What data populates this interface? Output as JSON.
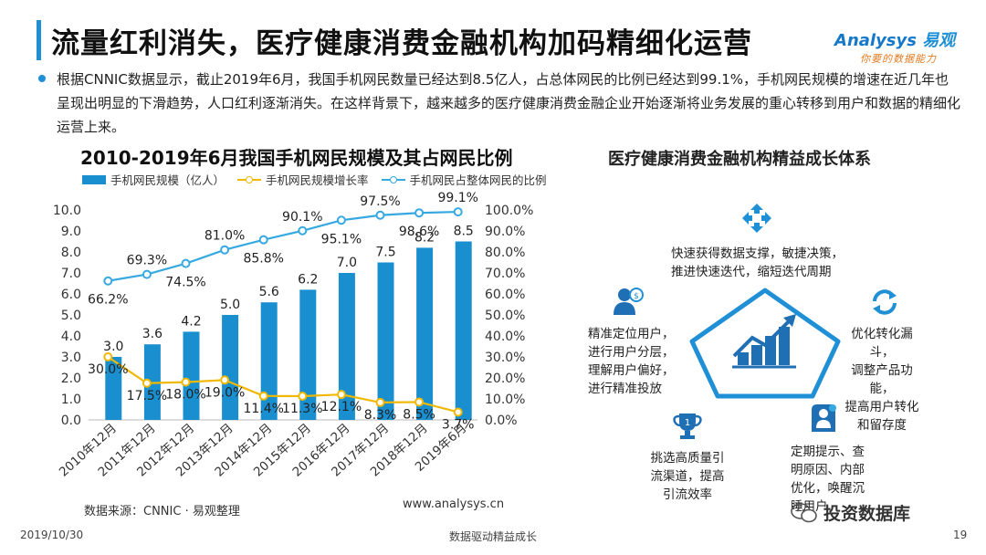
{
  "header": {
    "title": "流量红利消失，医疗健康消费金融机构加码精细化运营",
    "logo_name": "nalysys",
    "logo_initial": "A",
    "logo_cn": "易观",
    "logo_tagline": "你要的数据能力"
  },
  "intro": {
    "text": "根据CNNIC数据显示，截止2019年6月，我国手机网民数量已经达到8.5亿人，占总体网民的比例已经达到99.1%，手机网民规模的增速在近几年也呈现出明显的下滑趋势，人口红利逐渐消失。在这样背景下，越来越多的医疗健康消费金融企业开始逐渐将业务发展的重心转移到用户和数据的精细化运营上来。"
  },
  "chart_data": {
    "type": "bar",
    "title": "2010-2019年6月我国手机网民规模及其占网民比例",
    "categories": [
      "2010年12月",
      "2011年12月",
      "2012年12月",
      "2013年12月",
      "2014年12月",
      "2015年12月",
      "2016年12月",
      "2017年12月",
      "2018年12月",
      "2019年6月"
    ],
    "series": [
      {
        "name": "手机网民规模（亿人）",
        "type": "bar",
        "axis": "left",
        "color": "#1a8fd0",
        "values": [
          3.0,
          3.6,
          4.2,
          5.0,
          5.6,
          6.2,
          7.0,
          7.5,
          8.2,
          8.5
        ],
        "labels": [
          "3.0",
          "3.6",
          "4.2",
          "5.0",
          "5.6",
          "6.2",
          "7.0",
          "7.5",
          "8.2",
          "8.5"
        ]
      },
      {
        "name": "手机网民规模增长率",
        "type": "line",
        "axis": "right",
        "color": "#f0b800",
        "values": [
          30.0,
          17.5,
          18.0,
          19.0,
          11.4,
          11.3,
          12.1,
          8.3,
          8.5,
          3.7
        ],
        "labels": [
          "30.0%",
          "17.5%",
          "18.0%",
          "19.0%",
          "11.4%",
          "11.3%",
          "12.1%",
          "8.3%",
          "8.5%",
          "3.7%"
        ]
      },
      {
        "name": "手机网民占整体网民的比例",
        "type": "line",
        "axis": "right",
        "color": "#36a9e1",
        "values": [
          66.2,
          69.3,
          74.5,
          81.0,
          85.8,
          90.1,
          95.1,
          97.5,
          98.6,
          99.1
        ],
        "labels": [
          "66.2%",
          "69.3%",
          "74.5%",
          "81.0%",
          "85.8%",
          "90.1%",
          "95.1%",
          "97.5%",
          "98.6%",
          "99.1%"
        ]
      }
    ],
    "y_left": {
      "min": 0,
      "max": 10,
      "ticks": [
        "0.0",
        "1.0",
        "2.0",
        "3.0",
        "4.0",
        "5.0",
        "6.0",
        "7.0",
        "8.0",
        "9.0",
        "10.0"
      ]
    },
    "y_right": {
      "min": 0,
      "max": 100,
      "ticks": [
        "0.0%",
        "10.0%",
        "20.0%",
        "30.0%",
        "40.0%",
        "50.0%",
        "60.0%",
        "70.0%",
        "80.0%",
        "90.0%",
        "100.0%"
      ]
    },
    "grid": false,
    "legend": "top"
  },
  "source": {
    "label": "数据来源：CNNIC · 易观整理",
    "website": "www.analysys.cn"
  },
  "growth_system": {
    "title": "医疗健康消费金融机构精益成长体系",
    "items": [
      {
        "icon": "expand-arrows-icon",
        "text": [
          "快速获得数据支撑，敏捷决策，",
          "推进快速迭代，缩短迭代周期"
        ]
      },
      {
        "icon": "user-target-icon",
        "text": [
          "精准定位用户，",
          "进行用户分层，",
          "理解用户偏好，",
          "进行精准投放"
        ]
      },
      {
        "icon": "refresh-cycle-icon",
        "text": [
          "优化转化漏斗，",
          "调整产品功能，",
          "提高用户转化",
          "和留存度"
        ]
      },
      {
        "icon": "trophy-icon",
        "text": [
          "挑选高质量引",
          "流渠道，提高",
          "引流效率"
        ]
      },
      {
        "icon": "reminder-user-icon",
        "text": [
          "定期提示、查",
          "明原因、内部",
          "优化，唤醒沉",
          "睡用户"
        ]
      }
    ]
  },
  "footer": {
    "date": "2019/10/30",
    "center": "数据驱动精益成长",
    "page": "19",
    "wechat": "投资数据库"
  },
  "colors": {
    "accent": "#1f8fd6",
    "bar": "#1a8fd0",
    "growth_line": "#f0b800",
    "ratio_line": "#36a9e1"
  }
}
